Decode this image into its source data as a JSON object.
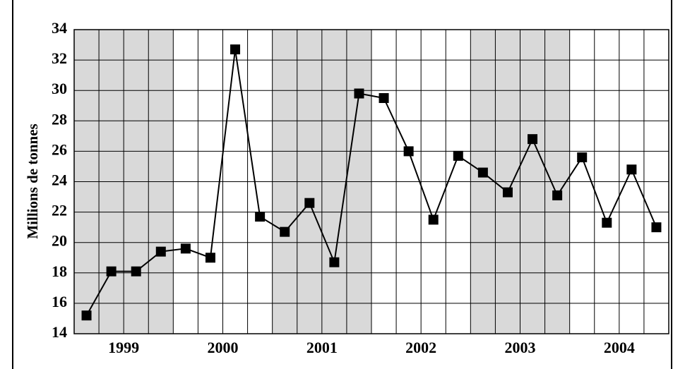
{
  "chart_data": {
    "type": "line",
    "y_label": "Millions de tonnes",
    "groups": [
      "1999",
      "2000",
      "2001",
      "2002",
      "2003",
      "2004"
    ],
    "values": [
      15.2,
      18.1,
      18.1,
      19.4,
      19.6,
      19.0,
      32.7,
      21.7,
      20.7,
      22.6,
      18.7,
      29.8,
      29.5,
      26.0,
      21.5,
      25.7,
      24.6,
      23.3,
      26.8,
      23.1,
      25.6,
      21.3,
      24.8,
      21.0
    ],
    "color": "#000000",
    "band_colors": [
      "#d9d9d9",
      "#ffffff"
    ],
    "ylim": [
      14,
      34
    ],
    "yticks": [
      14,
      16,
      18,
      20,
      22,
      24,
      26,
      28,
      30,
      32,
      34
    ],
    "grid": true
  }
}
